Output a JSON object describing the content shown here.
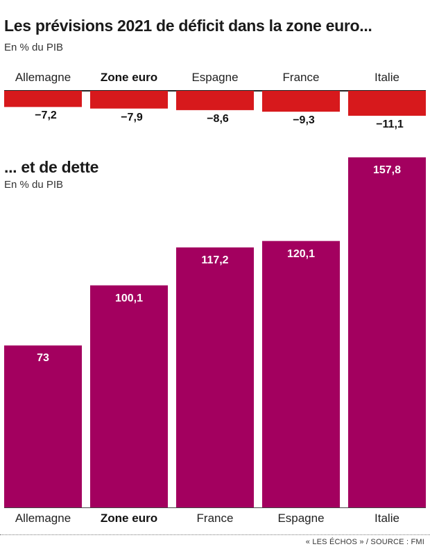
{
  "chart_data": [
    {
      "type": "bar",
      "title": "Les prévisions 2021 de déficit dans la zone euro...",
      "subtitle": "En % du PIB",
      "categories": [
        "Allemagne",
        "Zone euro",
        "Espagne",
        "France",
        "Italie"
      ],
      "values": [
        -7.2,
        -7.9,
        -8.6,
        -9.3,
        -11.1
      ],
      "value_labels": [
        "−7,2",
        "−7,9",
        "−8,6",
        "−9,3",
        "−11,1"
      ],
      "highlighted_category": "Zone euro",
      "bar_color": "#d7191c",
      "grid": false
    },
    {
      "type": "bar",
      "title": "... et de dette",
      "subtitle": "En % du PIB",
      "categories": [
        "Allemagne",
        "Zone euro",
        "France",
        "Espagne",
        "Italie"
      ],
      "values": [
        73,
        100.1,
        117.2,
        120.1,
        157.8
      ],
      "value_labels": [
        "73",
        "100,1",
        "117,2",
        "120,1",
        "157,8"
      ],
      "highlighted_category": "Zone euro",
      "bar_color": "#a3005f",
      "grid": false
    }
  ],
  "source": "« LES ÉCHOS » / SOURCE : FMI"
}
